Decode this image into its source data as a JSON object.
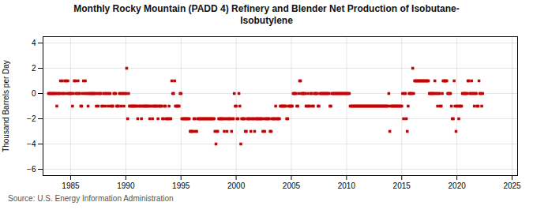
{
  "chart_data": {
    "type": "scatter",
    "title": "Monthly Rocky Mountain (PADD 4) Refinery and Blender Net Production of Isobutane-\nIsobutylene",
    "ylabel": "Thousand Barrels per Day",
    "source": "Source: U.S. Energy Information Administration",
    "color": "#cc0000",
    "marker": "square",
    "grid": true,
    "xlim": [
      1982.5,
      2025.5
    ],
    "xticks": [
      1985,
      1990,
      1995,
      2000,
      2005,
      2010,
      2015,
      2020,
      2025
    ],
    "ylim": [
      -6.5,
      4.5
    ],
    "yticks": [
      -6,
      -4,
      -2,
      0,
      2,
      4
    ],
    "x": [
      1983.0,
      1983.08,
      1983.17,
      1983.25,
      1983.33,
      1983.42,
      1983.5,
      1983.58,
      1983.67,
      1983.75,
      1983.83,
      1983.92,
      1984.0,
      1984.08,
      1984.17,
      1984.25,
      1984.33,
      1984.42,
      1984.5,
      1984.58,
      1984.67,
      1984.75,
      1984.83,
      1984.92,
      1985.0,
      1985.08,
      1985.17,
      1985.25,
      1985.33,
      1985.42,
      1985.5,
      1985.58,
      1985.67,
      1985.75,
      1985.83,
      1985.92,
      1986.0,
      1986.08,
      1986.17,
      1986.25,
      1986.33,
      1986.42,
      1986.5,
      1986.58,
      1986.67,
      1986.75,
      1986.83,
      1986.92,
      1987.0,
      1987.08,
      1987.17,
      1987.25,
      1987.33,
      1987.42,
      1987.5,
      1987.58,
      1987.67,
      1987.75,
      1987.83,
      1987.92,
      1988.0,
      1988.08,
      1988.17,
      1988.25,
      1988.33,
      1988.42,
      1988.5,
      1988.58,
      1988.67,
      1988.75,
      1988.83,
      1988.92,
      1989.0,
      1989.08,
      1989.17,
      1989.25,
      1989.33,
      1989.42,
      1989.5,
      1989.58,
      1989.67,
      1989.75,
      1989.83,
      1989.92,
      1990.0,
      1990.08,
      1990.17,
      1990.25,
      1990.33,
      1990.42,
      1990.5,
      1990.58,
      1990.67,
      1990.75,
      1990.83,
      1990.92,
      1991.0,
      1991.08,
      1991.17,
      1991.25,
      1991.33,
      1991.42,
      1991.5,
      1991.58,
      1991.67,
      1991.75,
      1991.83,
      1991.92,
      1992.0,
      1992.08,
      1992.17,
      1992.25,
      1992.33,
      1992.42,
      1992.5,
      1992.58,
      1992.67,
      1992.75,
      1992.83,
      1992.92,
      1993.0,
      1993.08,
      1993.17,
      1993.25,
      1993.33,
      1993.42,
      1993.5,
      1993.58,
      1993.67,
      1993.75,
      1993.83,
      1993.92,
      1994.0,
      1994.08,
      1994.17,
      1994.25,
      1994.33,
      1994.42,
      1994.5,
      1994.58,
      1994.67,
      1994.75,
      1994.83,
      1994.92,
      1995.0,
      1995.08,
      1995.17,
      1995.25,
      1995.33,
      1995.42,
      1995.5,
      1995.58,
      1995.67,
      1995.75,
      1995.83,
      1995.92,
      1996.0,
      1996.08,
      1996.17,
      1996.25,
      1996.33,
      1996.42,
      1996.5,
      1996.58,
      1996.67,
      1996.75,
      1996.83,
      1996.92,
      1997.0,
      1997.08,
      1997.17,
      1997.25,
      1997.33,
      1997.42,
      1997.5,
      1997.58,
      1997.67,
      1997.75,
      1997.83,
      1997.92,
      1998.0,
      1998.08,
      1998.17,
      1998.25,
      1998.33,
      1998.42,
      1998.5,
      1998.58,
      1998.67,
      1998.75,
      1998.83,
      1998.92,
      1999.0,
      1999.08,
      1999.17,
      1999.25,
      1999.33,
      1999.42,
      1999.5,
      1999.58,
      1999.67,
      1999.75,
      1999.83,
      1999.92,
      2000.0,
      2000.08,
      2000.17,
      2000.25,
      2000.33,
      2000.42,
      2000.5,
      2000.58,
      2000.67,
      2000.75,
      2000.83,
      2000.92,
      2001.0,
      2001.08,
      2001.17,
      2001.25,
      2001.33,
      2001.42,
      2001.5,
      2001.58,
      2001.67,
      2001.75,
      2001.83,
      2001.92,
      2002.0,
      2002.08,
      2002.17,
      2002.25,
      2002.33,
      2002.42,
      2002.5,
      2002.58,
      2002.67,
      2002.75,
      2002.83,
      2002.92,
      2003.0,
      2003.08,
      2003.17,
      2003.25,
      2003.33,
      2003.42,
      2003.5,
      2003.58,
      2003.67,
      2003.75,
      2003.83,
      2003.92,
      2004.0,
      2004.08,
      2004.17,
      2004.25,
      2004.33,
      2004.42,
      2004.5,
      2004.58,
      2004.67,
      2004.75,
      2004.83,
      2004.92,
      2005.0,
      2005.08,
      2005.17,
      2005.25,
      2005.33,
      2005.42,
      2005.5,
      2005.58,
      2005.67,
      2005.75,
      2005.83,
      2005.92,
      2006.0,
      2006.08,
      2006.17,
      2006.25,
      2006.33,
      2006.42,
      2006.5,
      2006.58,
      2006.67,
      2006.75,
      2006.83,
      2006.92,
      2007.0,
      2007.08,
      2007.17,
      2007.25,
      2007.33,
      2007.42,
      2007.5,
      2007.58,
      2007.67,
      2007.75,
      2007.83,
      2007.92,
      2008.0,
      2008.08,
      2008.17,
      2008.25,
      2008.33,
      2008.42,
      2008.5,
      2008.58,
      2008.67,
      2008.75,
      2008.83,
      2008.92,
      2009.0,
      2009.08,
      2009.17,
      2009.25,
      2009.33,
      2009.42,
      2009.5,
      2009.58,
      2009.67,
      2009.75,
      2009.83,
      2009.92,
      2010.0,
      2010.08,
      2010.17,
      2010.25,
      2010.33,
      2010.42,
      2010.5,
      2010.58,
      2010.67,
      2010.75,
      2010.83,
      2010.92,
      2011.0,
      2011.08,
      2011.17,
      2011.25,
      2011.33,
      2011.42,
      2011.5,
      2011.58,
      2011.67,
      2011.75,
      2011.83,
      2011.92,
      2012.0,
      2012.08,
      2012.17,
      2012.25,
      2012.33,
      2012.42,
      2012.5,
      2012.58,
      2012.67,
      2012.75,
      2012.83,
      2012.92,
      2013.0,
      2013.08,
      2013.17,
      2013.25,
      2013.33,
      2013.42,
      2013.5,
      2013.58,
      2013.67,
      2013.75,
      2013.83,
      2013.92,
      2014.0,
      2014.08,
      2014.17,
      2014.25,
      2014.33,
      2014.42,
      2014.5,
      2014.58,
      2014.67,
      2014.75,
      2014.83,
      2014.92,
      2015.0,
      2015.08,
      2015.17,
      2015.25,
      2015.33,
      2015.42,
      2015.5,
      2015.58,
      2015.67,
      2015.75,
      2015.83,
      2015.92,
      2016.0,
      2016.08,
      2016.17,
      2016.25,
      2016.33,
      2016.42,
      2016.5,
      2016.58,
      2016.67,
      2016.75,
      2016.83,
      2016.92,
      2017.0,
      2017.08,
      2017.17,
      2017.25,
      2017.33,
      2017.42,
      2017.5,
      2017.58,
      2017.67,
      2017.75,
      2017.83,
      2017.92,
      2018.0,
      2018.08,
      2018.17,
      2018.25,
      2018.33,
      2018.42,
      2018.5,
      2018.58,
      2018.67,
      2018.75,
      2018.83,
      2018.92,
      2019.0,
      2019.08,
      2019.17,
      2019.25,
      2019.33,
      2019.42,
      2019.5,
      2019.58,
      2019.67,
      2019.75,
      2019.83,
      2019.92,
      2020.0,
      2020.08,
      2020.17,
      2020.25,
      2020.33,
      2020.42,
      2020.5,
      2020.58,
      2020.67,
      2020.75,
      2020.83,
      2020.92,
      2021.0,
      2021.08,
      2021.17,
      2021.25,
      2021.33,
      2021.42,
      2021.5,
      2021.58,
      2021.67,
      2021.75,
      2021.83,
      2021.92,
      2022.0,
      2022.08,
      2022.17,
      2022.25,
      2022.33
    ],
    "values": [
      0,
      0,
      0,
      0,
      0,
      0,
      0,
      0,
      0,
      -1,
      0,
      0,
      0,
      1,
      0,
      1,
      0,
      0,
      1,
      1,
      0,
      1,
      0,
      0,
      0,
      0,
      -1,
      0,
      1,
      1,
      0,
      0,
      1,
      0,
      0,
      -1,
      -1,
      0,
      1,
      0,
      1,
      0,
      0,
      -1,
      0,
      0,
      0,
      0,
      0,
      0,
      0,
      0,
      -1,
      0,
      -1,
      0,
      0,
      0,
      -1,
      -1,
      0,
      0,
      -1,
      0,
      0,
      -1,
      0,
      0,
      -1,
      -1,
      -1,
      0,
      0,
      0,
      -1,
      -1,
      -1,
      0,
      0,
      -1,
      0,
      0,
      -1,
      0,
      0,
      2,
      -2,
      0,
      -1,
      -1,
      -1,
      -1,
      -1,
      -1,
      -1,
      -1,
      -1,
      -2,
      -1,
      -1,
      -1,
      -2,
      -1,
      -1,
      -1,
      -1,
      -1,
      -1,
      -1,
      -1,
      -2,
      -1,
      -1,
      -2,
      -1,
      -1,
      -1,
      -1,
      -1,
      -2,
      -1,
      -1,
      -1,
      -1,
      -2,
      -2,
      -1,
      -1,
      -2,
      -2,
      -2,
      -1,
      -2,
      -2,
      1,
      0,
      0,
      1,
      -1,
      -1,
      -1,
      -1,
      -1,
      0,
      0,
      -2,
      -2,
      -2,
      -2,
      -2,
      -2,
      -2,
      -2,
      -2,
      -3,
      -3,
      -3,
      -3,
      -2,
      -2,
      -3,
      -3,
      -2,
      -2,
      -2,
      -2,
      -2,
      -2,
      -2,
      -2,
      -2,
      -2,
      -2,
      -2,
      -2,
      -2,
      -2,
      -2,
      -2,
      -2,
      -2,
      -3,
      -4,
      -3,
      -3,
      -2,
      -2,
      -2,
      -2,
      -2,
      -2,
      -3,
      -2,
      -2,
      -3,
      -2,
      -2,
      -2,
      -2,
      -3,
      -2,
      -2,
      0,
      -1,
      -1,
      -2,
      -2,
      0,
      -1,
      -4,
      -2,
      -2,
      -2,
      -2,
      -3,
      -3,
      -2,
      -2,
      -2,
      -2,
      -3,
      -2,
      -2,
      -2,
      -3,
      -2,
      -2,
      -2,
      -2,
      -2,
      -2,
      -2,
      -2,
      -3,
      -2,
      -3,
      -2,
      -2,
      -2,
      -2,
      -2,
      -3,
      -3,
      -2,
      -2,
      -2,
      -2,
      -1,
      -2,
      -2,
      -2,
      -2,
      -1,
      -1,
      -1,
      -1,
      -1,
      -1,
      -1,
      -2,
      -2,
      -1,
      -1,
      -1,
      -1,
      -1,
      0,
      0,
      0,
      0,
      -1,
      -1,
      0,
      1,
      1,
      0,
      0,
      0,
      0,
      0,
      -1,
      -1,
      0,
      -1,
      -1,
      0,
      0,
      -1,
      -1,
      0,
      0,
      0,
      0,
      -1,
      -1,
      0,
      0,
      0,
      0,
      0,
      0,
      0,
      0,
      0,
      0,
      0,
      -1,
      -1,
      0,
      0,
      0,
      0,
      0,
      0,
      0,
      0,
      0,
      0,
      0,
      0,
      0,
      0,
      0,
      0,
      0,
      0,
      0,
      0,
      -1,
      -1,
      -1,
      -1,
      -1,
      -1,
      -1,
      -1,
      -1,
      -1,
      -1,
      -1,
      -1,
      -1,
      -1,
      -1,
      -1,
      -1,
      -1,
      -1,
      -1,
      -1,
      -1,
      -1,
      -1,
      -1,
      -1,
      -1,
      -1,
      -1,
      -1,
      -1,
      -1,
      -1,
      -1,
      -1,
      -1,
      -1,
      -1,
      -1,
      -1,
      -1,
      0,
      -3,
      -1,
      -1,
      -1,
      -1,
      -1,
      -1,
      -1,
      -1,
      -1,
      -1,
      -1,
      -1,
      -1,
      0,
      -2,
      0,
      0,
      -2,
      -3,
      -1,
      0,
      0,
      0,
      0,
      2,
      0,
      1,
      1,
      1,
      1,
      1,
      1,
      1,
      1,
      1,
      1,
      1,
      1,
      1,
      1,
      1,
      1,
      0,
      0,
      0,
      0,
      0,
      0,
      1,
      0,
      0,
      -1,
      0,
      0,
      -1,
      -1,
      0,
      1,
      1,
      1,
      1,
      1,
      0,
      0,
      0,
      0,
      -1,
      -2,
      -2,
      1,
      -1,
      -3,
      -1,
      -1,
      -2,
      -1,
      -1,
      -1,
      0,
      0,
      0,
      0,
      0,
      0,
      1,
      1,
      0,
      0,
      1,
      0,
      0,
      -1,
      0,
      0,
      -1,
      -1,
      1,
      0,
      0,
      -1,
      0
    ]
  }
}
